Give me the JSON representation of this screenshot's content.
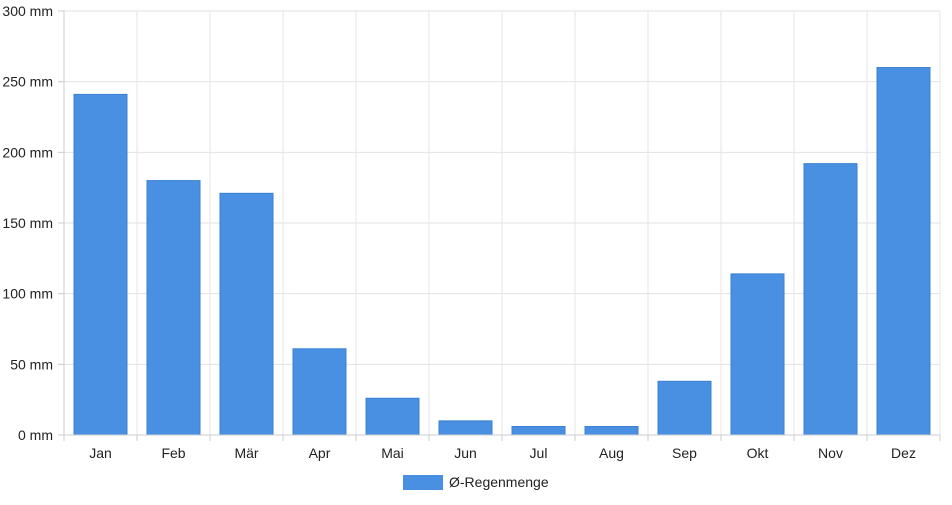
{
  "chart_data": {
    "type": "bar",
    "categories": [
      "Jan",
      "Feb",
      "Mär",
      "Apr",
      "Mai",
      "Jun",
      "Jul",
      "Aug",
      "Sep",
      "Okt",
      "Nov",
      "Dez"
    ],
    "series": [
      {
        "name": "Ø-Regenmenge",
        "values": [
          241,
          180,
          171,
          61,
          26,
          10,
          6,
          6,
          38,
          114,
          192,
          260
        ],
        "color": "#4a90e2"
      }
    ],
    "y_unit": "mm",
    "ylim": [
      0,
      300
    ],
    "yticks": [
      0,
      50,
      100,
      150,
      200,
      250,
      300
    ],
    "ytick_labels": [
      "0 mm",
      "50 mm",
      "100 mm",
      "150 mm",
      "200 mm",
      "250 mm",
      "300 mm"
    ],
    "grid": true,
    "legend_position": "bottom-center"
  }
}
